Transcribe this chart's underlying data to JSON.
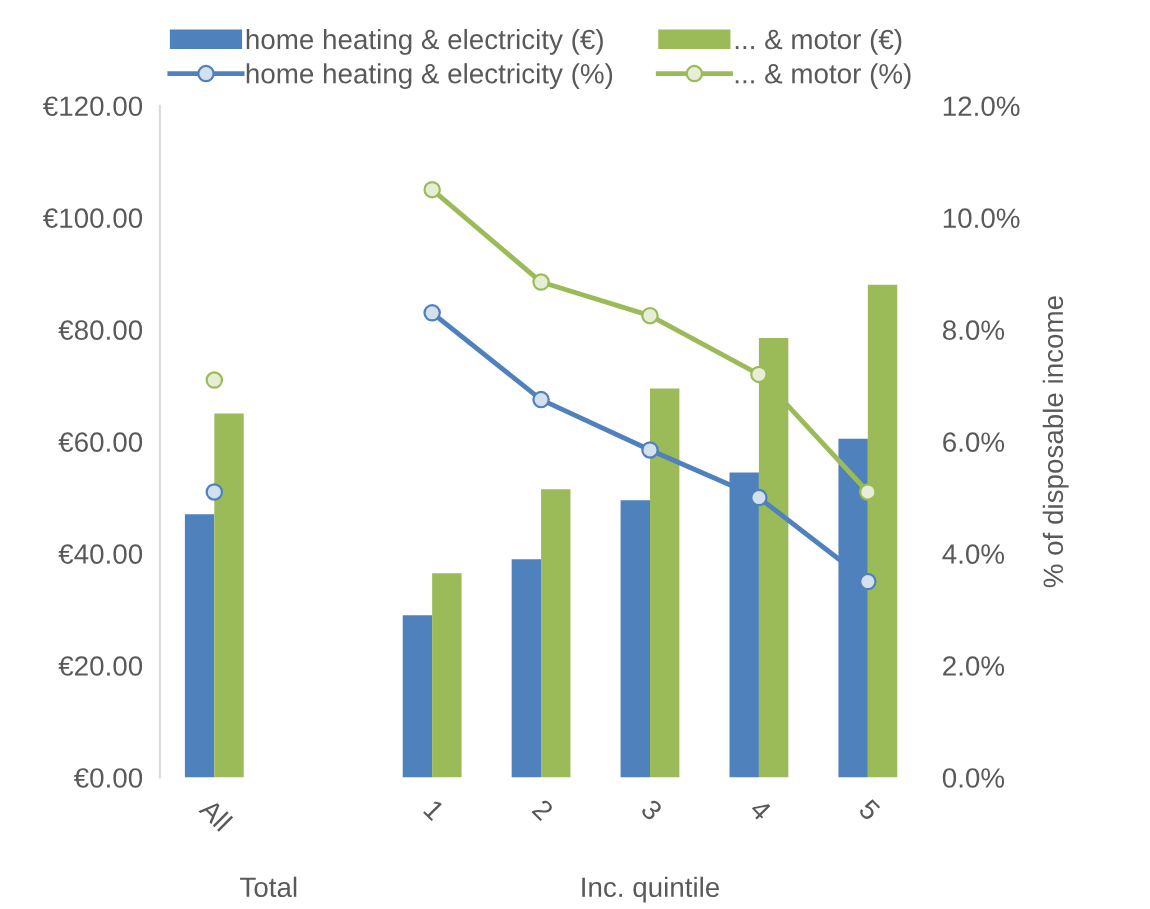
{
  "chart_data": {
    "type": "bar",
    "categories": [
      "All",
      null,
      "1",
      "2",
      "3",
      "4",
      "5"
    ],
    "series": [
      {
        "name": "home heating & electricity (€)",
        "color": "#4f81bd",
        "values": [
          47,
          null,
          29,
          39,
          49.5,
          54.5,
          60.5
        ]
      },
      {
        "name": "... & motor (€)",
        "color": "#9bbb59",
        "values": [
          65,
          null,
          36.5,
          51.5,
          69.5,
          78.5,
          88
        ]
      },
      {
        "name": "home heating & electricity (%)",
        "type": "line",
        "axis": "y2",
        "color": "#4f81bd",
        "values": [
          5.1,
          null,
          8.3,
          6.75,
          5.85,
          5.0,
          3.5
        ]
      },
      {
        "name": "... & motor (%)",
        "type": "line",
        "axis": "y2",
        "color": "#9bbb59",
        "values": [
          7.1,
          null,
          10.5,
          8.85,
          8.25,
          7.2,
          5.1
        ]
      }
    ],
    "ylim": [
      0,
      120
    ],
    "yticks": [
      {
        "value": 0,
        "label": "€0.00"
      },
      {
        "value": 20,
        "label": "€20.00"
      },
      {
        "value": 40,
        "label": "€40.00"
      },
      {
        "value": 60,
        "label": "€60.00"
      },
      {
        "value": 80,
        "label": "€80.00"
      },
      {
        "value": 100,
        "label": "€100.00"
      },
      {
        "value": 120,
        "label": "€120.00"
      }
    ],
    "y2lim": [
      0,
      12
    ],
    "y2ticks": [
      {
        "value": 0,
        "label": "0.0%"
      },
      {
        "value": 2,
        "label": "2.0%"
      },
      {
        "value": 4,
        "label": "4.0%"
      },
      {
        "value": 6,
        "label": "6.0%"
      },
      {
        "value": 8,
        "label": "8.0%"
      },
      {
        "value": 10,
        "label": "10.0%"
      },
      {
        "value": 12,
        "label": "12.0%"
      }
    ],
    "y2label": "% of disposable income",
    "annotations": [
      "Total",
      "Inc. quintile"
    ],
    "legend": "top",
    "marker": "circle"
  }
}
